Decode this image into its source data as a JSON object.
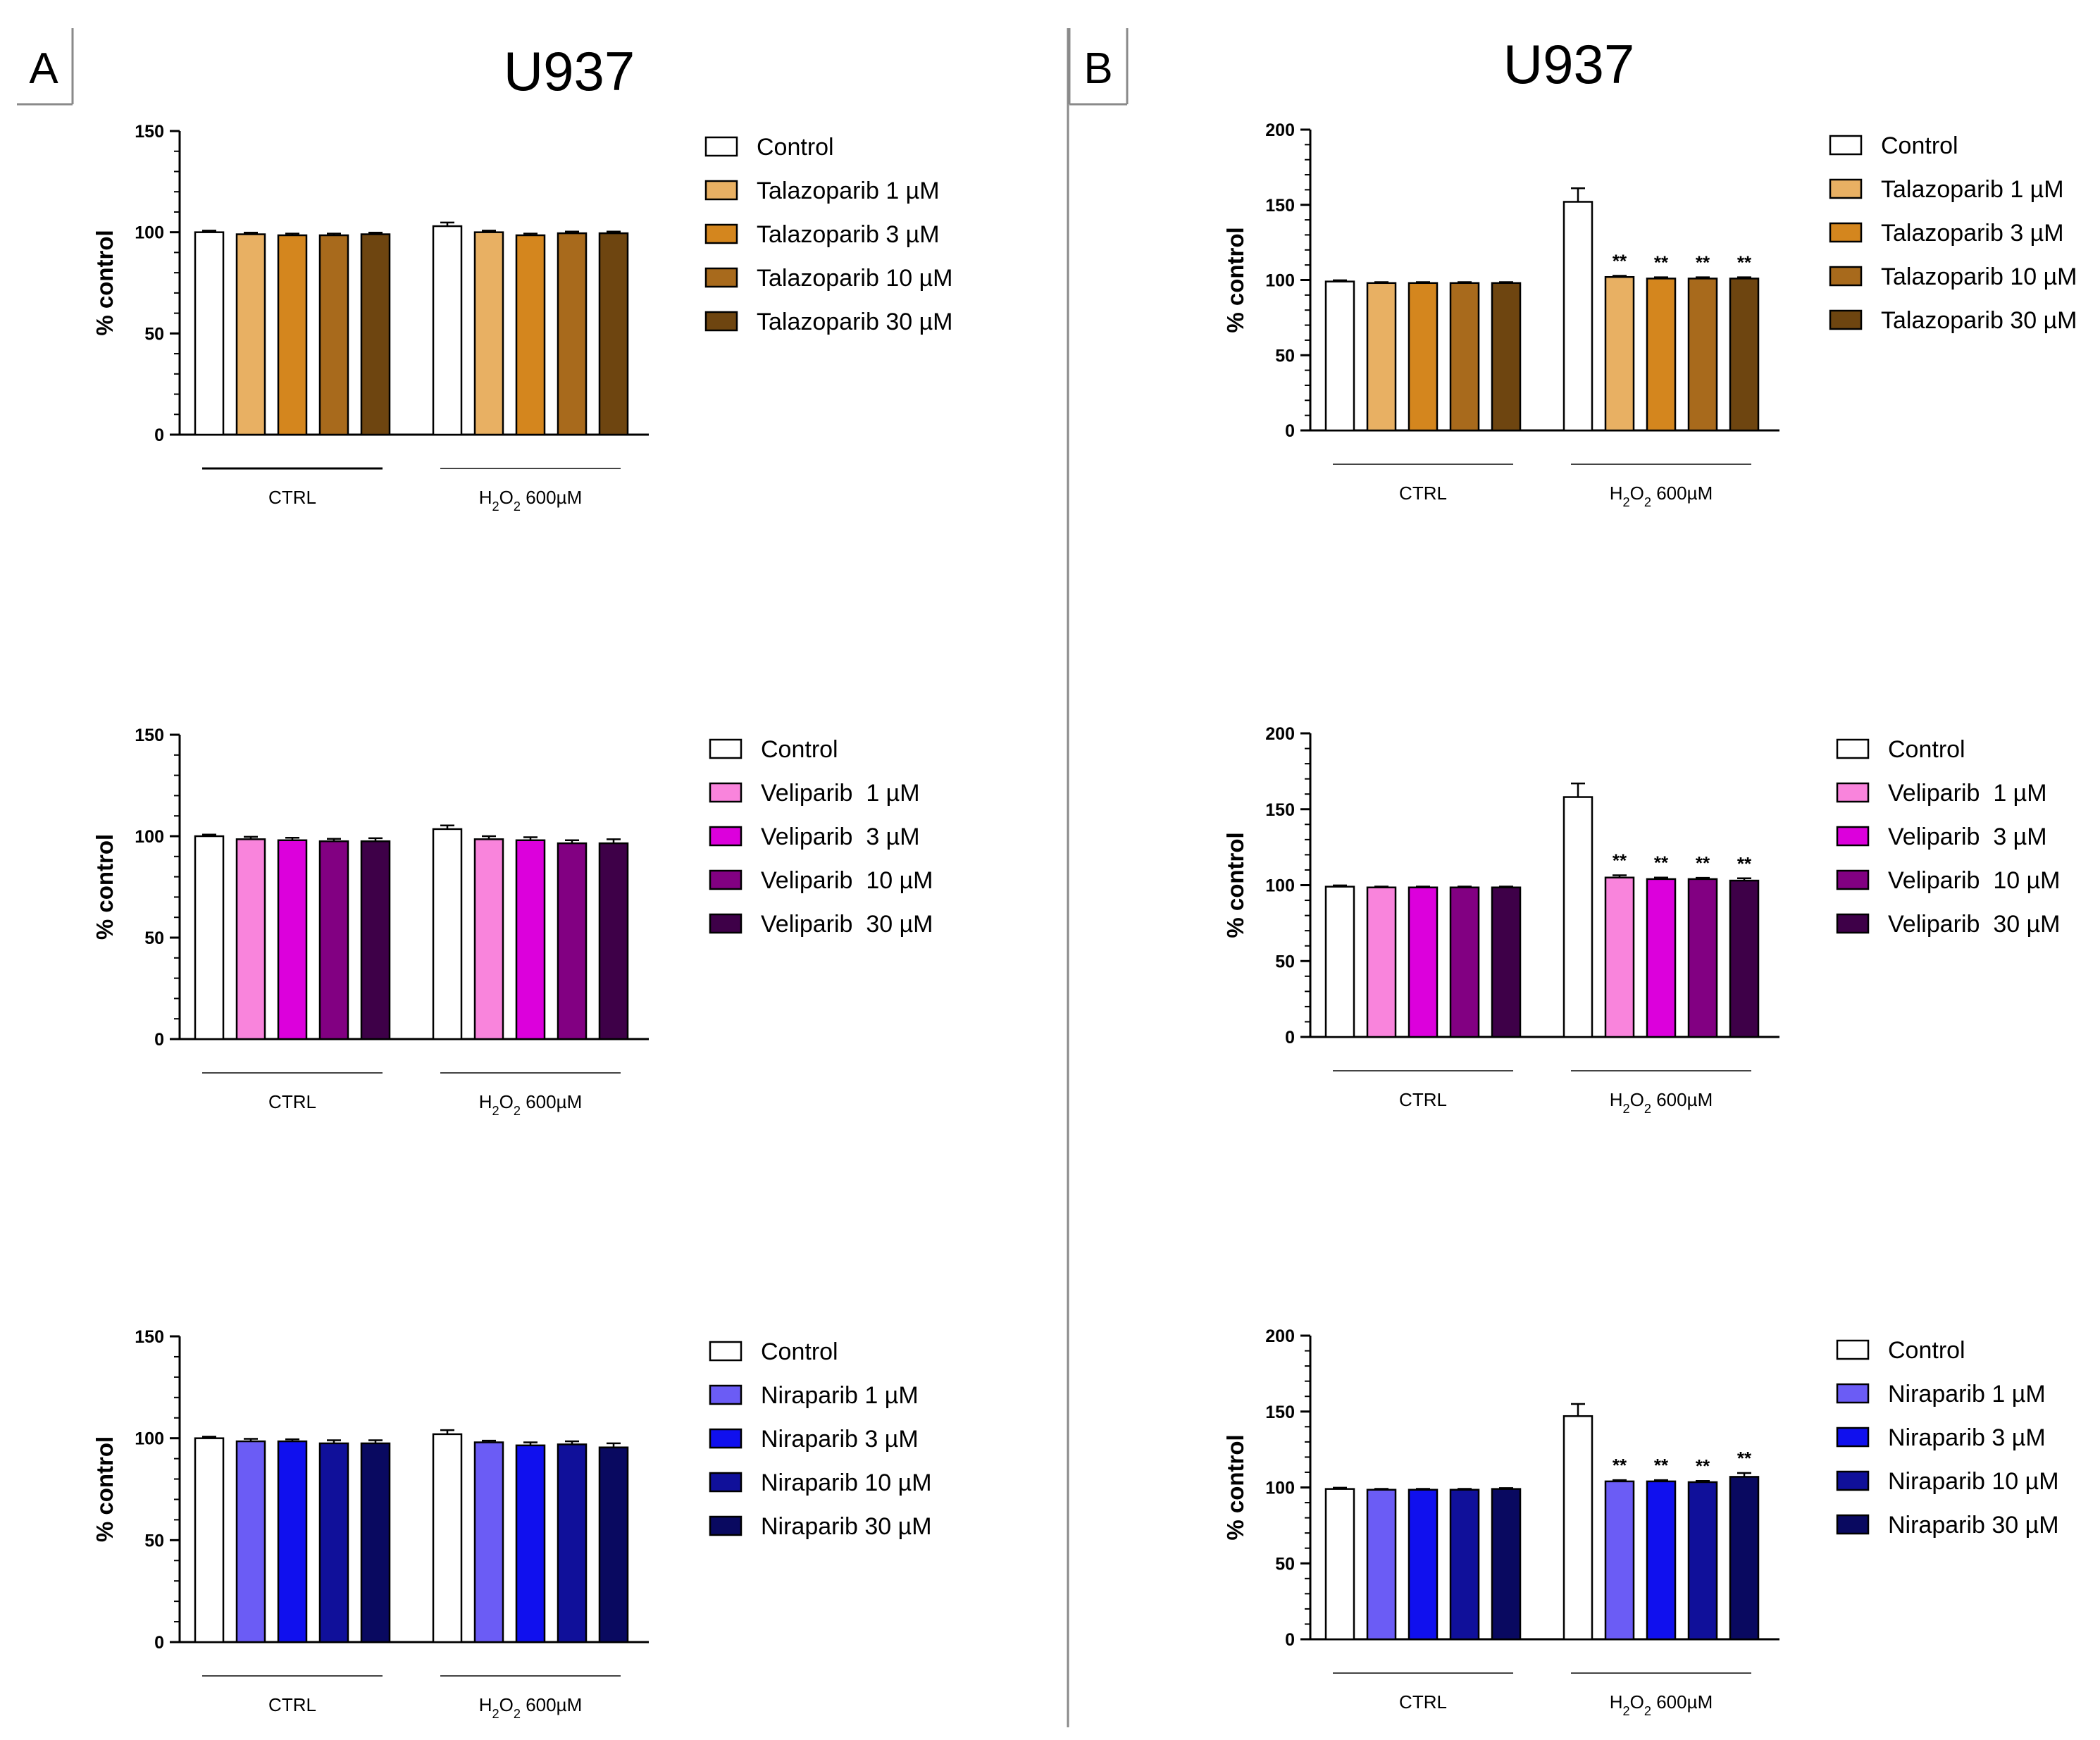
{
  "figure": {
    "panels": [
      {
        "letter": "A",
        "title": "U937"
      },
      {
        "letter": "B",
        "title": "U937"
      }
    ]
  },
  "colors": {
    "control": "#ffffff",
    "talazoparib": [
      "#e8b063",
      "#d4861e",
      "#a86a1c",
      "#6e4510"
    ],
    "veliparib": [
      "#f984dc",
      "#dc00dc",
      "#820082",
      "#3e0048"
    ],
    "niraparib": [
      "#6b5cf5",
      "#1010ee",
      "#10109a",
      "#090960"
    ]
  },
  "chart_data": [
    {
      "panel": "A",
      "type": "bar",
      "ylabel": "% control",
      "ylim": [
        0,
        150
      ],
      "yticks": [
        0,
        50,
        100,
        150
      ],
      "groups": [
        "CTRL",
        "H₂O₂ 600µM"
      ],
      "legend": [
        "Control",
        "Talazoparib 1 µM",
        "Talazoparib 3 µM",
        "Talazoparib 10 µM",
        "Talazoparib 30 µM"
      ],
      "series": [
        {
          "name": "Control",
          "values": [
            100,
            103
          ],
          "errors": [
            0.8,
            1.8
          ]
        },
        {
          "name": "Talazoparib 1 µM",
          "values": [
            99,
            100
          ],
          "errors": [
            0.8,
            0.8
          ]
        },
        {
          "name": "Talazoparib 3 µM",
          "values": [
            98.5,
            98.5
          ],
          "errors": [
            0.8,
            0.8
          ]
        },
        {
          "name": "Talazoparib 10 µM",
          "values": [
            98.5,
            99.5
          ],
          "errors": [
            0.8,
            0.8
          ]
        },
        {
          "name": "Talazoparib 30 µM",
          "values": [
            99,
            99.5
          ],
          "errors": [
            0.8,
            0.8
          ]
        }
      ],
      "annotations": [
        "",
        "",
        "",
        "",
        ""
      ],
      "colorKey": "talazoparib"
    },
    {
      "panel": "A",
      "type": "bar",
      "ylabel": "% control",
      "ylim": [
        0,
        150
      ],
      "yticks": [
        0,
        50,
        100,
        150
      ],
      "groups": [
        "CTRL",
        "H₂O₂ 600µM"
      ],
      "legend": [
        "Control",
        "Veliparib  1 µM",
        "Veliparib  3 µM",
        "Veliparib  10 µM",
        "Veliparib  30 µM"
      ],
      "series": [
        {
          "name": "Control",
          "values": [
            100,
            103.5
          ],
          "errors": [
            0.8,
            1.8
          ]
        },
        {
          "name": "Veliparib  1 µM",
          "values": [
            98.5,
            98.5
          ],
          "errors": [
            1.2,
            1.5
          ]
        },
        {
          "name": "Veliparib  3 µM",
          "values": [
            98,
            98
          ],
          "errors": [
            1.2,
            1.5
          ]
        },
        {
          "name": "Veliparib  10 µM",
          "values": [
            97.5,
            96.5
          ],
          "errors": [
            1.2,
            1.5
          ]
        },
        {
          "name": "Veliparib  30 µM",
          "values": [
            97.5,
            96.5
          ],
          "errors": [
            1.5,
            2.0
          ]
        }
      ],
      "annotations": [
        "",
        "",
        "",
        "",
        ""
      ],
      "colorKey": "veliparib"
    },
    {
      "panel": "A",
      "type": "bar",
      "ylabel": "% control",
      "ylim": [
        0,
        150
      ],
      "yticks": [
        0,
        50,
        100,
        150
      ],
      "groups": [
        "CTRL",
        "H₂O₂ 600µM"
      ],
      "legend": [
        "Control",
        "Niraparib 1 µM",
        "Niraparib 3 µM",
        "Niraparib 10 µM",
        "Niraparib 30 µM"
      ],
      "series": [
        {
          "name": "Control",
          "values": [
            100,
            102
          ],
          "errors": [
            0.8,
            2.0
          ]
        },
        {
          "name": "Niraparib 1 µM",
          "values": [
            98.5,
            98
          ],
          "errors": [
            1.2,
            0.8
          ]
        },
        {
          "name": "Niraparib 3 µM",
          "values": [
            98.5,
            96.5
          ],
          "errors": [
            1.0,
            1.5
          ]
        },
        {
          "name": "Niraparib 10 µM",
          "values": [
            97.5,
            97
          ],
          "errors": [
            1.5,
            1.5
          ]
        },
        {
          "name": "Niraparib 30 µM",
          "values": [
            97.5,
            95.5
          ],
          "errors": [
            1.5,
            2.0
          ]
        }
      ],
      "annotations": [
        "",
        "",
        "",
        "",
        ""
      ],
      "colorKey": "niraparib"
    },
    {
      "panel": "B",
      "type": "bar",
      "ylabel": "% control",
      "ylim": [
        0,
        200
      ],
      "yticks": [
        0,
        50,
        100,
        150,
        200
      ],
      "groups": [
        "CTRL",
        "H₂O₂ 600µM"
      ],
      "legend": [
        "Control",
        "Talazoparib 1 µM",
        "Talazoparib 3 µM",
        "Talazoparib 10 µM",
        "Talazoparib 30 µM"
      ],
      "series": [
        {
          "name": "Control",
          "values": [
            99,
            152
          ],
          "errors": [
            0.8,
            9
          ]
        },
        {
          "name": "Talazoparib 1 µM",
          "values": [
            98,
            102
          ],
          "errors": [
            0.6,
            0.8
          ]
        },
        {
          "name": "Talazoparib 3 µM",
          "values": [
            98,
            101
          ],
          "errors": [
            0.6,
            0.8
          ]
        },
        {
          "name": "Talazoparib 10 µM",
          "values": [
            98,
            101
          ],
          "errors": [
            0.6,
            0.8
          ]
        },
        {
          "name": "Talazoparib 30 µM",
          "values": [
            98,
            101
          ],
          "errors": [
            0.6,
            0.8
          ]
        }
      ],
      "annotations": [
        "",
        "**",
        "**",
        "**",
        "**"
      ],
      "colorKey": "talazoparib"
    },
    {
      "panel": "B",
      "type": "bar",
      "ylabel": "% control",
      "ylim": [
        0,
        200
      ],
      "yticks": [
        0,
        50,
        100,
        150,
        200
      ],
      "groups": [
        "CTRL",
        "H₂O₂ 600µM"
      ],
      "legend": [
        "Control",
        "Veliparib  1 µM",
        "Veliparib  3 µM",
        "Veliparib  10 µM",
        "Veliparib  30 µM"
      ],
      "series": [
        {
          "name": "Control",
          "values": [
            99,
            158
          ],
          "errors": [
            0.8,
            9
          ]
        },
        {
          "name": "Veliparib  1 µM",
          "values": [
            98.5,
            105
          ],
          "errors": [
            0.6,
            1.5
          ]
        },
        {
          "name": "Veliparib  3 µM",
          "values": [
            98.5,
            104
          ],
          "errors": [
            0.6,
            1.0
          ]
        },
        {
          "name": "Veliparib  10 µM",
          "values": [
            98.5,
            104
          ],
          "errors": [
            0.6,
            0.8
          ]
        },
        {
          "name": "Veliparib  30 µM",
          "values": [
            98.5,
            103
          ],
          "errors": [
            0.6,
            1.5
          ]
        }
      ],
      "annotations": [
        "",
        "**",
        "**",
        "**",
        "**"
      ],
      "colorKey": "veliparib"
    },
    {
      "panel": "B",
      "type": "bar",
      "ylabel": "% control",
      "ylim": [
        0,
        200
      ],
      "yticks": [
        0,
        50,
        100,
        150,
        200
      ],
      "groups": [
        "CTRL",
        "H₂O₂ 600µM"
      ],
      "legend": [
        "Control",
        "Niraparib 1 µM",
        "Niraparib 3 µM",
        "Niraparib 10 µM",
        "Niraparib 30 µM"
      ],
      "series": [
        {
          "name": "Control",
          "values": [
            99,
            147
          ],
          "errors": [
            0.8,
            8
          ]
        },
        {
          "name": "Niraparib 1 µM",
          "values": [
            98.5,
            104
          ],
          "errors": [
            0.6,
            0.8
          ]
        },
        {
          "name": "Niraparib 3 µM",
          "values": [
            98.5,
            104
          ],
          "errors": [
            0.6,
            0.8
          ]
        },
        {
          "name": "Niraparib 10 µM",
          "values": [
            98.5,
            103.5
          ],
          "errors": [
            0.6,
            0.8
          ]
        },
        {
          "name": "Niraparib 30 µM",
          "values": [
            99,
            107
          ],
          "errors": [
            0.6,
            2.5
          ]
        }
      ],
      "annotations": [
        "",
        "**",
        "**",
        "**",
        "**"
      ],
      "colorKey": "niraparib"
    }
  ]
}
